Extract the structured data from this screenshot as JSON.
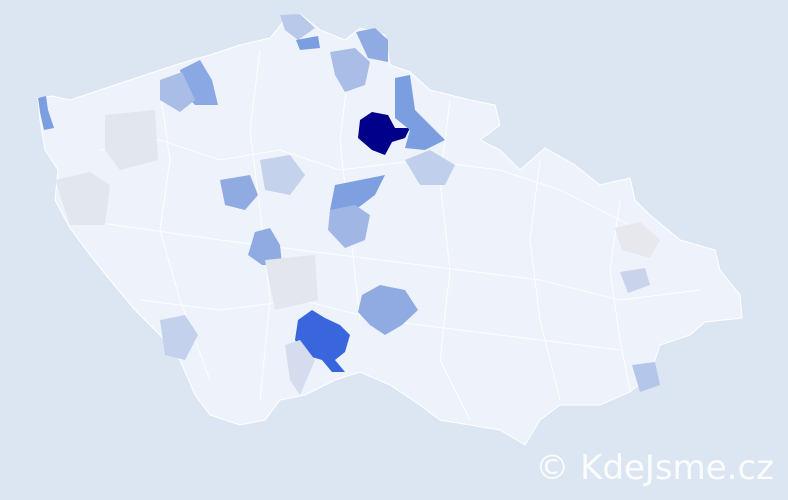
{
  "map": {
    "background_color": "#dce6f2",
    "base_region_color": "#eef2fa",
    "border_color": "#ffffff",
    "scale_colors": {
      "lowest": "#eef2fa",
      "low": "#c9d6ee",
      "medium": "#8fabe2",
      "high": "#3a66dd",
      "highest": "#00008b"
    },
    "highlighted_regions": [
      {
        "name": "highest",
        "level": "highest"
      },
      {
        "name": "high",
        "level": "high"
      },
      {
        "name": "medium-1",
        "level": "medium"
      },
      {
        "name": "medium-2",
        "level": "medium"
      },
      {
        "name": "medium-3",
        "level": "medium"
      },
      {
        "name": "medium-4",
        "level": "medium"
      },
      {
        "name": "medium-5",
        "level": "medium"
      },
      {
        "name": "medium-6",
        "level": "medium"
      },
      {
        "name": "low-1",
        "level": "low"
      },
      {
        "name": "low-2",
        "level": "low"
      },
      {
        "name": "low-3",
        "level": "low"
      },
      {
        "name": "low-4",
        "level": "low"
      },
      {
        "name": "low-5",
        "level": "low"
      },
      {
        "name": "low-6",
        "level": "low"
      }
    ]
  },
  "watermark": "© KdeJsme.cz"
}
